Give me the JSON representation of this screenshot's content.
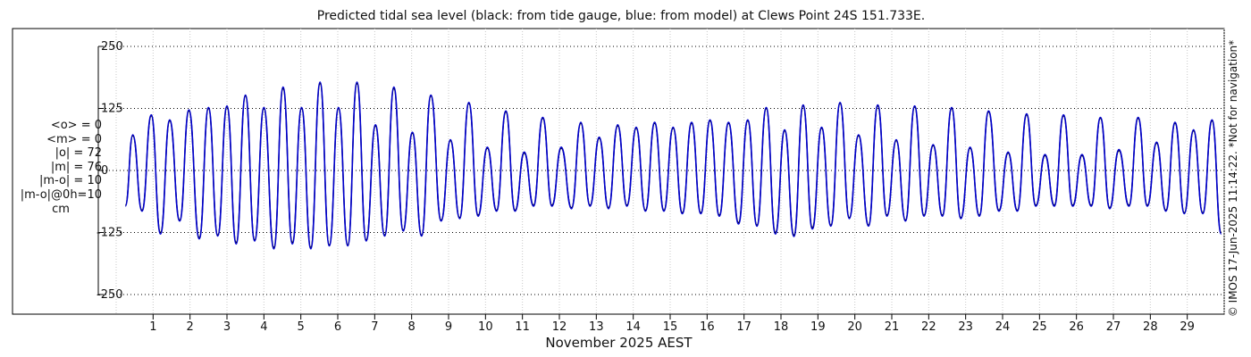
{
  "chart_data": {
    "type": "line",
    "title": "Predicted tidal sea level (black: from tide gauge, blue: from model) at Clews Point 24S 151.733E.",
    "xlabel": "November 2025 AEST",
    "ylabel": "",
    "ylim": [
      -250,
      250
    ],
    "yticks": [
      250,
      125,
      0,
      -125,
      -250
    ],
    "xlim": [
      0,
      30
    ],
    "xticks": [
      1,
      2,
      3,
      4,
      5,
      6,
      7,
      8,
      9,
      10,
      11,
      12,
      13,
      14,
      15,
      16,
      17,
      18,
      19,
      20,
      21,
      22,
      23,
      24,
      25,
      26,
      27,
      28,
      29
    ],
    "grid": true,
    "series": [
      {
        "name": "from tide gauge",
        "color": "#000000",
        "x": [
          0.25,
          0.45,
          0.7,
          0.95,
          1.2,
          1.45,
          1.72,
          1.97,
          2.25,
          2.5,
          2.75,
          3.0,
          3.25,
          3.5,
          3.75,
          4.0,
          4.27,
          4.52,
          4.77,
          5.02,
          5.27,
          5.52,
          5.77,
          6.02,
          6.27,
          6.52,
          6.77,
          7.02,
          7.27,
          7.52,
          7.77,
          8.02,
          8.27,
          8.52,
          8.8,
          9.05,
          9.3,
          9.55,
          9.8,
          10.05,
          10.3,
          10.55,
          10.8,
          11.05,
          11.3,
          11.55,
          11.8,
          12.05,
          12.33,
          12.58,
          12.83,
          13.08,
          13.33,
          13.58,
          13.83,
          14.08,
          14.33,
          14.58,
          14.83,
          15.08,
          15.33,
          15.58,
          15.83,
          16.08,
          16.33,
          16.58,
          16.85,
          17.1,
          17.35,
          17.6,
          17.85,
          18.1,
          18.35,
          18.6,
          18.85,
          19.1,
          19.35,
          19.6,
          19.85,
          20.1,
          20.37,
          20.62,
          20.87,
          21.12,
          21.37,
          21.62,
          21.87,
          22.12,
          22.37,
          22.62,
          22.87,
          23.12,
          23.37,
          23.62,
          23.9,
          24.15,
          24.4,
          24.65,
          24.9,
          25.15,
          25.4,
          25.65,
          25.9,
          26.15,
          26.4,
          26.65,
          26.9,
          27.15,
          27.42,
          27.67,
          27.92,
          28.17,
          28.42,
          28.67,
          28.92,
          29.17,
          29.42,
          29.67,
          29.92
        ],
        "values": [
          -70,
          70,
          -80,
          110,
          -125,
          100,
          -100,
          120,
          -135,
          125,
          -130,
          128,
          -145,
          150,
          -140,
          125,
          -155,
          165,
          -145,
          125,
          -155,
          175,
          -150,
          125,
          -150,
          175,
          -140,
          90,
          -130,
          165,
          -120,
          75,
          -130,
          150,
          -100,
          60,
          -95,
          135,
          -90,
          45,
          -80,
          118,
          -80,
          35,
          -70,
          105,
          -70,
          45,
          -75,
          95,
          -70,
          65,
          -75,
          90,
          -70,
          85,
          -80,
          95,
          -80,
          85,
          -85,
          95,
          -85,
          100,
          -90,
          95,
          -105,
          100,
          -110,
          125,
          -125,
          80,
          -130,
          130,
          -115,
          85,
          -110,
          135,
          -95,
          70,
          -110,
          130,
          -90,
          60,
          -100,
          128,
          -90,
          50,
          -90,
          125,
          -95,
          45,
          -90,
          118,
          -80,
          35,
          -80,
          112,
          -70,
          30,
          -70,
          110,
          -70,
          30,
          -70,
          105,
          -75,
          40,
          -70,
          105,
          -70,
          55,
          -80,
          95,
          -85,
          80,
          -85,
          100,
          -125
        ]
      },
      {
        "name": "from model",
        "color": "#0000cc",
        "x": [
          0.25,
          0.45,
          0.7,
          0.95,
          1.2,
          1.45,
          1.72,
          1.97,
          2.25,
          2.5,
          2.75,
          3.0,
          3.25,
          3.5,
          3.75,
          4.0,
          4.27,
          4.52,
          4.77,
          5.02,
          5.27,
          5.52,
          5.77,
          6.02,
          6.27,
          6.52,
          6.77,
          7.02,
          7.27,
          7.52,
          7.77,
          8.02,
          8.27,
          8.52,
          8.8,
          9.05,
          9.3,
          9.55,
          9.8,
          10.05,
          10.3,
          10.55,
          10.8,
          11.05,
          11.3,
          11.55,
          11.8,
          12.05,
          12.33,
          12.58,
          12.83,
          13.08,
          13.33,
          13.58,
          13.83,
          14.08,
          14.33,
          14.58,
          14.83,
          15.08,
          15.33,
          15.58,
          15.83,
          16.08,
          16.33,
          16.58,
          16.85,
          17.1,
          17.35,
          17.6,
          17.85,
          18.1,
          18.35,
          18.6,
          18.85,
          19.1,
          19.35,
          19.6,
          19.85,
          20.1,
          20.37,
          20.62,
          20.87,
          21.12,
          21.37,
          21.62,
          21.87,
          22.12,
          22.37,
          22.62,
          22.87,
          23.12,
          23.37,
          23.62,
          23.9,
          24.15,
          24.4,
          24.65,
          24.9,
          25.15,
          25.4,
          25.65,
          25.9,
          26.15,
          26.4,
          26.65,
          26.9,
          27.15,
          27.42,
          27.67,
          27.92,
          28.17,
          28.42,
          28.67,
          28.92,
          29.17,
          29.42,
          29.67,
          29.92
        ],
        "values": [
          -72,
          72,
          -82,
          112,
          -128,
          102,
          -102,
          122,
          -138,
          127,
          -132,
          130,
          -148,
          152,
          -142,
          127,
          -158,
          168,
          -148,
          127,
          -158,
          178,
          -152,
          127,
          -152,
          178,
          -142,
          92,
          -132,
          168,
          -122,
          77,
          -132,
          152,
          -102,
          62,
          -97,
          137,
          -92,
          47,
          -82,
          120,
          -82,
          37,
          -72,
          107,
          -72,
          47,
          -77,
          97,
          -72,
          67,
          -77,
          92,
          -72,
          87,
          -82,
          97,
          -82,
          87,
          -87,
          97,
          -87,
          102,
          -92,
          97,
          -108,
          102,
          -112,
          127,
          -128,
          82,
          -133,
          132,
          -118,
          87,
          -112,
          137,
          -97,
          72,
          -112,
          132,
          -92,
          62,
          -102,
          130,
          -92,
          52,
          -92,
          127,
          -97,
          47,
          -92,
          120,
          -82,
          37,
          -82,
          114,
          -72,
          32,
          -72,
          112,
          -72,
          32,
          -72,
          107,
          -77,
          42,
          -72,
          107,
          -72,
          57,
          -82,
          97,
          -87,
          82,
          -87,
          102,
          -128
        ]
      }
    ]
  },
  "stats": {
    "lines": [
      "<o> = 0",
      "<m> = 0",
      "|o| = 72",
      "|m| = 76",
      "|m-o| = 10",
      "|m-o|@0h=10"
    ],
    "unit": "cm"
  },
  "side_note": "© IMOS 17-Jun-2025 11:14:22. *Not for navigation*"
}
